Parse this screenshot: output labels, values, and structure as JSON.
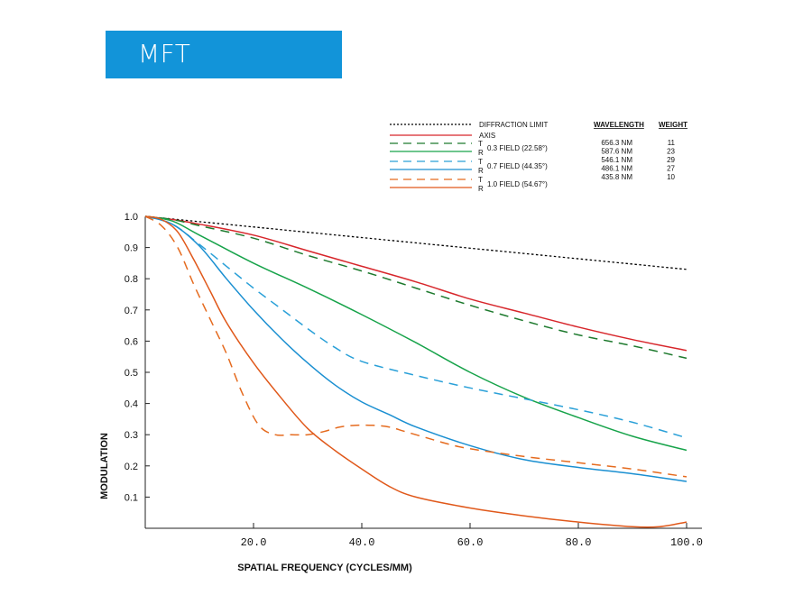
{
  "header": {
    "title": "MFT",
    "banner_color": "#1294d9"
  },
  "legend": {
    "diffraction_label": "DIFFRACTION LIMIT",
    "axis_label": "AXIS",
    "tangential_mark": "T",
    "radial_mark": "R",
    "field_labels": [
      "0.3 FIELD (22.58°)",
      "0.7 FIELD (44.35°)",
      "1.0 FIELD (54.67°)"
    ],
    "wavelength_header": "WAVELENGTH",
    "weight_header": "WEIGHT",
    "wavelengths": [
      "656.3 NM",
      "587.6 NM",
      "546.1 NM",
      "486.1 NM",
      "435.8 NM"
    ],
    "weights": [
      "11",
      "23",
      "29",
      "27",
      "10"
    ]
  },
  "chart_data": {
    "type": "line",
    "xlabel": "SPATIAL FREQUENCY (CYCLES/MM)",
    "ylabel": "MODULATION",
    "xlim": [
      0,
      100
    ],
    "ylim": [
      0,
      1.0
    ],
    "xticks": [
      "20.0",
      "40.0",
      "60.0",
      "80.0",
      "100.0"
    ],
    "yticks": [
      "0.1",
      "0.2",
      "0.3",
      "0.4",
      "0.5",
      "0.6",
      "0.7",
      "0.8",
      "0.9",
      "1.0"
    ],
    "grid": false,
    "series": [
      {
        "name": "DIFFRACTION LIMIT",
        "color": "#000000",
        "dash": "dot",
        "x": [
          0,
          100
        ],
        "y": [
          1.0,
          0.83
        ]
      },
      {
        "name": "AXIS",
        "color": "#d7262b",
        "dash": "solid",
        "x": [
          0,
          5,
          10,
          20,
          30,
          40,
          50,
          60,
          70,
          80,
          90,
          100
        ],
        "y": [
          1.0,
          0.99,
          0.975,
          0.94,
          0.89,
          0.84,
          0.79,
          0.735,
          0.69,
          0.645,
          0.605,
          0.57
        ]
      },
      {
        "name": "0.3 FIELD (22.58°) T",
        "color": "#1e7a2e",
        "dash": "dash",
        "x": [
          0,
          5,
          10,
          20,
          30,
          40,
          50,
          60,
          70,
          80,
          90,
          100
        ],
        "y": [
          1.0,
          0.99,
          0.97,
          0.93,
          0.875,
          0.825,
          0.77,
          0.715,
          0.665,
          0.62,
          0.585,
          0.545
        ]
      },
      {
        "name": "0.3 FIELD (22.58°) R",
        "color": "#17a34a",
        "dash": "solid",
        "x": [
          0,
          5,
          10,
          20,
          30,
          40,
          50,
          60,
          70,
          80,
          90,
          100
        ],
        "y": [
          1.0,
          0.985,
          0.94,
          0.85,
          0.77,
          0.685,
          0.595,
          0.5,
          0.42,
          0.355,
          0.295,
          0.25
        ]
      },
      {
        "name": "0.7 FIELD (44.35°) T",
        "color": "#2aa0d8",
        "dash": "dash",
        "x": [
          0,
          5,
          10,
          15,
          20,
          25,
          30,
          35,
          40,
          50,
          60,
          70,
          80,
          90,
          100
        ],
        "y": [
          1.0,
          0.975,
          0.91,
          0.84,
          0.77,
          0.705,
          0.64,
          0.58,
          0.535,
          0.49,
          0.45,
          0.415,
          0.38,
          0.34,
          0.29
        ]
      },
      {
        "name": "0.7 FIELD (44.35°) R",
        "color": "#1a8fd1",
        "dash": "solid",
        "x": [
          0,
          5,
          10,
          15,
          20,
          25,
          30,
          35,
          40,
          45,
          50,
          60,
          70,
          80,
          90,
          100
        ],
        "y": [
          1.0,
          0.975,
          0.905,
          0.8,
          0.7,
          0.61,
          0.53,
          0.46,
          0.405,
          0.365,
          0.325,
          0.265,
          0.22,
          0.195,
          0.175,
          0.15
        ]
      },
      {
        "name": "1.0 FIELD (54.67°) T",
        "color": "#e56b1f",
        "dash": "dash",
        "x": [
          0,
          3,
          6,
          9,
          12,
          15,
          18,
          21,
          24,
          27,
          30,
          33,
          36,
          39,
          42,
          45,
          48,
          52,
          56,
          60,
          70,
          80,
          90,
          100
        ],
        "y": [
          1.0,
          0.97,
          0.9,
          0.78,
          0.67,
          0.56,
          0.43,
          0.33,
          0.3,
          0.3,
          0.3,
          0.31,
          0.325,
          0.33,
          0.33,
          0.325,
          0.31,
          0.29,
          0.27,
          0.255,
          0.23,
          0.21,
          0.19,
          0.165
        ]
      },
      {
        "name": "1.0 FIELD (54.67°) R",
        "color": "#e0581a",
        "dash": "solid",
        "x": [
          0,
          3,
          6,
          9,
          12,
          15,
          20,
          25,
          30,
          35,
          40,
          45,
          50,
          60,
          70,
          80,
          90,
          95,
          100
        ],
        "y": [
          1.0,
          0.99,
          0.95,
          0.86,
          0.76,
          0.66,
          0.53,
          0.42,
          0.32,
          0.25,
          0.19,
          0.135,
          0.1,
          0.065,
          0.04,
          0.02,
          0.005,
          0.005,
          0.02
        ]
      }
    ]
  }
}
